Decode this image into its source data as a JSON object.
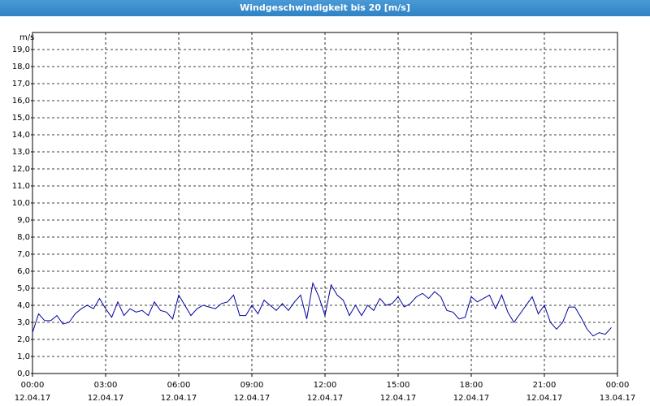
{
  "chart_data": {
    "type": "line",
    "title": "Windgeschwindigkeit bis 20 [m/s]",
    "y_label": "m/s",
    "x": [
      0,
      0.25,
      0.5,
      0.75,
      1,
      1.25,
      1.5,
      1.75,
      2,
      2.25,
      2.5,
      2.75,
      3,
      3.25,
      3.5,
      3.75,
      4,
      4.25,
      4.5,
      4.75,
      5,
      5.25,
      5.5,
      5.75,
      6,
      6.25,
      6.5,
      6.75,
      7,
      7.25,
      7.5,
      7.75,
      8,
      8.25,
      8.5,
      8.75,
      9,
      9.25,
      9.5,
      9.75,
      10,
      10.25,
      10.5,
      10.75,
      11,
      11.25,
      11.5,
      11.75,
      12,
      12.25,
      12.5,
      12.75,
      13,
      13.25,
      13.5,
      13.75,
      14,
      14.25,
      14.5,
      14.75,
      15,
      15.25,
      15.5,
      15.75,
      16,
      16.25,
      16.5,
      16.75,
      17,
      17.25,
      17.5,
      17.75,
      18,
      18.25,
      18.5,
      18.75,
      19,
      19.25,
      19.5,
      19.75,
      20,
      20.25,
      20.5,
      20.75,
      21,
      21.25,
      21.5,
      21.75,
      22,
      22.25,
      22.5,
      22.75,
      23,
      23.25,
      23.5,
      23.75
    ],
    "series": [
      {
        "name": "Windgeschwindigkeit",
        "color": "#0000a0",
        "values": [
          2.4,
          3.5,
          3.1,
          3.1,
          3.4,
          2.9,
          3.0,
          3.5,
          3.8,
          4.0,
          3.8,
          4.4,
          3.8,
          3.3,
          4.2,
          3.4,
          3.8,
          3.6,
          3.7,
          3.4,
          4.2,
          3.7,
          3.6,
          3.2,
          4.6,
          4.0,
          3.4,
          3.8,
          4.0,
          3.9,
          3.8,
          4.1,
          4.2,
          4.6,
          3.4,
          3.4,
          4.0,
          3.5,
          4.3,
          4.0,
          3.7,
          4.1,
          3.7,
          4.2,
          4.6,
          3.2,
          5.3,
          4.5,
          3.4,
          5.2,
          4.6,
          4.3,
          3.4,
          4.0,
          3.4,
          4.0,
          3.7,
          4.4,
          4.0,
          4.1,
          4.5,
          3.9,
          4.1,
          4.5,
          4.7,
          4.4,
          4.8,
          4.5,
          3.7,
          3.6,
          3.2,
          3.3,
          4.5,
          4.2,
          4.4,
          4.6,
          3.8,
          4.6,
          3.6,
          3.0,
          3.5,
          4.0,
          4.5,
          3.5,
          4.0,
          3.0,
          2.6,
          3.0,
          3.9,
          3.9,
          3.3,
          2.6,
          2.2,
          2.4,
          2.3,
          2.7
        ]
      }
    ],
    "xlim": [
      0,
      24
    ],
    "ylim": [
      0,
      20
    ],
    "xticks": [
      {
        "value": 0,
        "label": [
          "00:00",
          "12.04.17"
        ]
      },
      {
        "value": 3,
        "label": [
          "03:00",
          "12.04.17"
        ]
      },
      {
        "value": 6,
        "label": [
          "06:00",
          "12.04.17"
        ]
      },
      {
        "value": 9,
        "label": [
          "09:00",
          "12.04.17"
        ]
      },
      {
        "value": 12,
        "label": [
          "12:00",
          "12.04.17"
        ]
      },
      {
        "value": 15,
        "label": [
          "15:00",
          "12.04.17"
        ]
      },
      {
        "value": 18,
        "label": [
          "18:00",
          "12.04.17"
        ]
      },
      {
        "value": 21,
        "label": [
          "21:00",
          "12.04.17"
        ]
      },
      {
        "value": 24,
        "label": [
          "00:00",
          "13.04.17"
        ]
      }
    ],
    "yticks": [
      {
        "value": 0,
        "label": "0,0"
      },
      {
        "value": 1,
        "label": "1,0"
      },
      {
        "value": 2,
        "label": "2,0"
      },
      {
        "value": 3,
        "label": "3,0"
      },
      {
        "value": 4,
        "label": "4,0"
      },
      {
        "value": 5,
        "label": "5,0"
      },
      {
        "value": 6,
        "label": "6,0"
      },
      {
        "value": 7,
        "label": "7,0"
      },
      {
        "value": 8,
        "label": "8,0"
      },
      {
        "value": 9,
        "label": "9,0"
      },
      {
        "value": 10,
        "label": "10,0"
      },
      {
        "value": 11,
        "label": "11,0"
      },
      {
        "value": 12,
        "label": "12,0"
      },
      {
        "value": 13,
        "label": "13,0"
      },
      {
        "value": 14,
        "label": "14,0"
      },
      {
        "value": 15,
        "label": "15,0"
      },
      {
        "value": 16,
        "label": "16,0"
      },
      {
        "value": 17,
        "label": "17,0"
      },
      {
        "value": 18,
        "label": "18,0"
      },
      {
        "value": 19,
        "label": "19,0"
      }
    ],
    "grid": true
  }
}
